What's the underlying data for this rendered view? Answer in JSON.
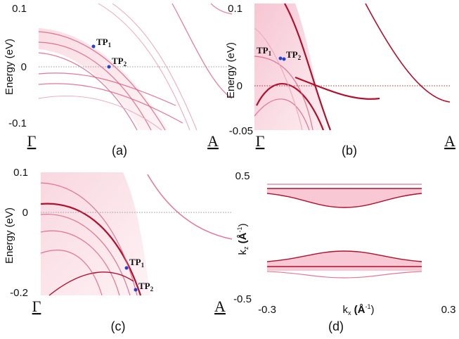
{
  "panels": [
    {
      "label": "(a)",
      "y_axis_label": "Energy (eV)",
      "y_ticks": [
        "0.1",
        "0",
        "-0.1"
      ],
      "x_ticks": [
        "Γ",
        "A"
      ],
      "points": [
        {
          "text": "TP",
          "sub": "1"
        },
        {
          "text": "TP",
          "sub": "2"
        }
      ]
    },
    {
      "label": "(b)",
      "y_axis_label": "Energy (eV)",
      "y_ticks": [
        "0.1",
        "0",
        "-0.05"
      ],
      "x_ticks": [
        "Γ",
        "A"
      ],
      "points": [
        {
          "text": "TP",
          "sub": "1"
        },
        {
          "text": "TP",
          "sub": "2"
        }
      ]
    },
    {
      "label": "(c)",
      "y_axis_label": "Energy (eV)",
      "y_ticks": [
        "0.1",
        "0",
        "-0.2"
      ],
      "x_ticks": [
        "Γ",
        "A"
      ],
      "points": [
        {
          "text": "TP",
          "sub": "1"
        },
        {
          "text": "TP",
          "sub": "2"
        }
      ]
    },
    {
      "label": "(d)",
      "y_axis_label": {
        "text": "k",
        "sub": "z",
        "unit": " (Å",
        "sup": "-1",
        "close": ")"
      },
      "x_axis_label": {
        "text": "k",
        "sub": "x",
        "unit": " (Å",
        "sup": "-1",
        "close": ")"
      },
      "y_ticks": [
        "0.5",
        "-0.5"
      ],
      "x_ticks": [
        "-0.3",
        "0.3"
      ]
    }
  ]
}
